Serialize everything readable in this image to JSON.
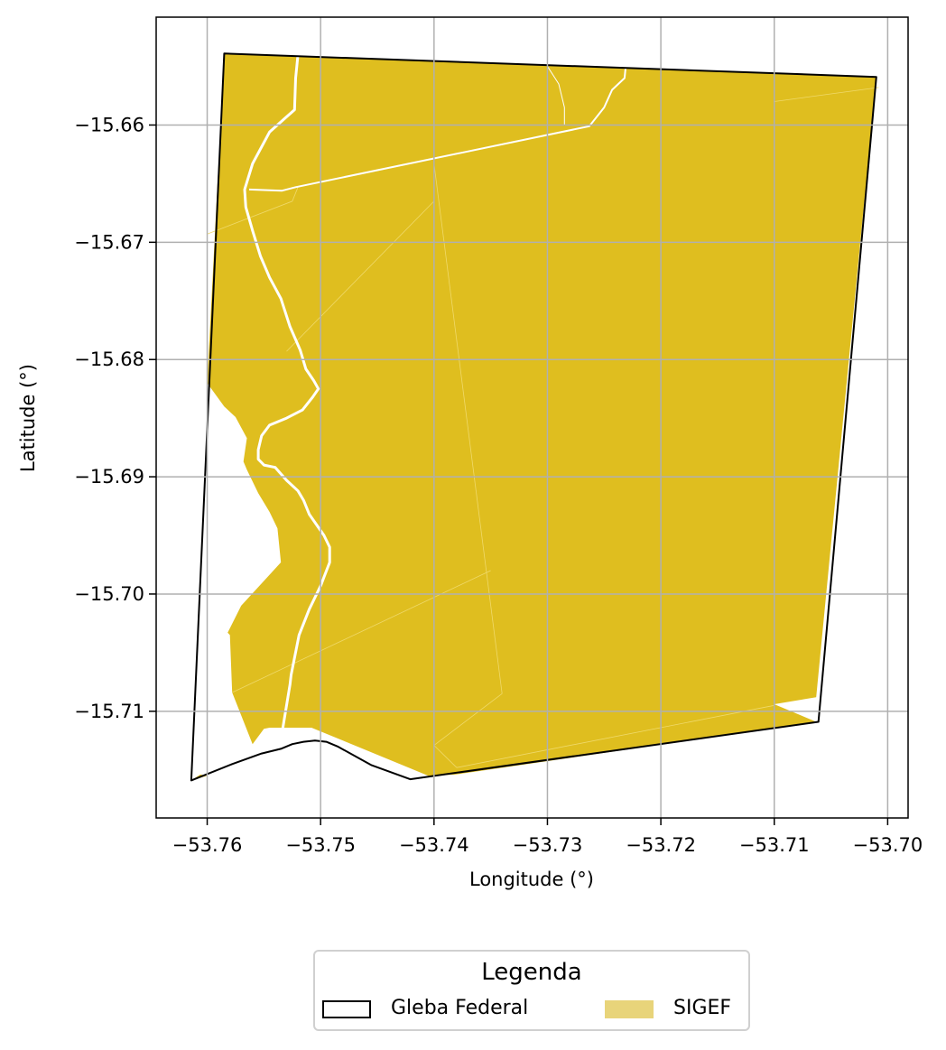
{
  "chart_data": {
    "type": "map",
    "xlabel": "Longitude (°)",
    "ylabel": "Latitude (°)",
    "xlim": [
      -53.7645,
      -53.6982
    ],
    "ylim": [
      -15.7191,
      -15.6508
    ],
    "x_ticks": [
      -53.76,
      -53.75,
      -53.74,
      -53.73,
      -53.72,
      -53.71,
      -53.7
    ],
    "x_tick_labels": [
      "−53.76",
      "−53.75",
      "−53.74",
      "−53.73",
      "−53.72",
      "−53.71",
      "−53.70"
    ],
    "y_ticks": [
      -15.66,
      -15.67,
      -15.68,
      -15.69,
      -15.7,
      -15.71
    ],
    "y_tick_labels": [
      "−15.66",
      "−15.67",
      "−15.68",
      "−15.69",
      "−15.70",
      "−15.71"
    ],
    "grid": true,
    "colors": {
      "sigef_fill": "#dfbe1f",
      "legend_sigef_fill": "#e8d47a",
      "gleba_edge": "#000000",
      "grid": "#b0b0b0",
      "road": "#ffffff"
    },
    "gleba_federal": [
      [
        -53.7585,
        -15.6539
      ],
      [
        -53.701,
        -15.6559
      ],
      [
        -53.7061,
        -15.7109
      ],
      [
        -53.7421,
        -15.7158
      ],
      [
        -53.7455,
        -15.7146
      ],
      [
        -53.7485,
        -15.713
      ],
      [
        -53.7495,
        -15.7126
      ],
      [
        -53.7505,
        -15.7125
      ],
      [
        -53.7515,
        -15.7126
      ],
      [
        -53.7525,
        -15.7128
      ],
      [
        -53.7535,
        -15.7132
      ],
      [
        -53.7552,
        -15.7136
      ],
      [
        -53.7578,
        -15.7145
      ],
      [
        -53.7614,
        -15.7159
      ]
    ],
    "sigef": [
      [
        -53.7585,
        -15.6539
      ],
      [
        -53.701,
        -15.6559
      ],
      [
        -53.7063,
        -15.7088
      ],
      [
        -53.71,
        -15.7094
      ],
      [
        -53.7063,
        -15.7109
      ],
      [
        -53.7381,
        -15.7154
      ],
      [
        -53.7405,
        -15.7155
      ],
      [
        -53.7508,
        -15.7114
      ],
      [
        -53.7525,
        -15.7114
      ],
      [
        -53.7545,
        -15.7114
      ],
      [
        -53.755,
        -15.7115
      ],
      [
        -53.756,
        -15.7128
      ],
      [
        -53.7578,
        -15.7084
      ],
      [
        -53.758,
        -15.7035
      ],
      [
        -53.7582,
        -15.7033
      ],
      [
        -53.757,
        -15.701
      ],
      [
        -53.7535,
        -15.6973
      ],
      [
        -53.7538,
        -15.6944
      ],
      [
        -53.7545,
        -15.693
      ],
      [
        -53.7555,
        -15.6914
      ],
      [
        -53.7565,
        -15.6894
      ],
      [
        -53.7568,
        -15.6887
      ],
      [
        -53.7565,
        -15.6867
      ],
      [
        -53.7575,
        -15.6849
      ],
      [
        -53.7585,
        -15.684
      ],
      [
        -53.76,
        -15.682
      ]
    ],
    "sigef_tail": [
      [
        -53.7614,
        -15.7159
      ],
      [
        -53.76,
        -15.7155
      ],
      [
        -53.7606,
        -15.7154
      ]
    ],
    "sigef_hole": [
      [
        -53.7086,
        -15.7096
      ],
      [
        -53.7061,
        -15.7089
      ],
      [
        -53.7061,
        -15.7109
      ]
    ],
    "parcel_lines": [
      [
        [
          -53.76,
          -15.6693
        ],
        [
          -53.7525,
          -15.6665
        ],
        [
          -53.752,
          -15.6653
        ]
      ],
      [
        [
          -53.753,
          -15.6793
        ],
        [
          -53.74,
          -15.6665
        ]
      ],
      [
        [
          -53.74,
          -15.6633
        ],
        [
          -53.734,
          -15.7085
        ]
      ],
      [
        [
          -53.734,
          -15.7085
        ],
        [
          -53.74,
          -15.7129
        ],
        [
          -53.738,
          -15.7148
        ]
      ],
      [
        [
          -53.738,
          -15.7148
        ],
        [
          -53.71,
          -15.7095
        ]
      ],
      [
        [
          -53.7578,
          -15.7084
        ],
        [
          -53.735,
          -15.698
        ]
      ],
      [
        [
          -53.71,
          -15.658
        ],
        [
          -53.7008,
          -15.6568
        ]
      ]
    ],
    "roads_main": [
      [
        [
          -53.752,
          -15.654
        ],
        [
          -53.7522,
          -15.656
        ],
        [
          -53.7523,
          -15.6587
        ],
        [
          -53.753,
          -15.6593
        ],
        [
          -53.7545,
          -15.6606
        ],
        [
          -53.756,
          -15.6633
        ],
        [
          -53.7567,
          -15.6655
        ],
        [
          -53.7566,
          -15.667
        ],
        [
          -53.756,
          -15.669
        ],
        [
          -53.7553,
          -15.6712
        ],
        [
          -53.7545,
          -15.673
        ],
        [
          -53.7535,
          -15.6748
        ],
        [
          -53.7527,
          -15.6772
        ],
        [
          -53.7518,
          -15.6792
        ],
        [
          -53.7513,
          -15.6808
        ],
        [
          -53.7506,
          -15.6818
        ],
        [
          -53.7502,
          -15.6825
        ],
        [
          -53.7507,
          -15.6832
        ],
        [
          -53.7516,
          -15.6843
        ],
        [
          -53.753,
          -15.685
        ],
        [
          -53.7545,
          -15.6856
        ],
        [
          -53.7552,
          -15.6865
        ],
        [
          -53.7555,
          -15.6877
        ],
        [
          -53.7555,
          -15.6885
        ],
        [
          -53.755,
          -15.689
        ],
        [
          -53.754,
          -15.6892
        ],
        [
          -53.753,
          -15.6903
        ],
        [
          -53.752,
          -15.6912
        ],
        [
          -53.7515,
          -15.692
        ],
        [
          -53.751,
          -15.6932
        ],
        [
          -53.7497,
          -15.695
        ],
        [
          -53.7492,
          -15.696
        ],
        [
          -53.7492,
          -15.6973
        ],
        [
          -53.75,
          -15.6993
        ],
        [
          -53.751,
          -15.7013
        ],
        [
          -53.7519,
          -15.7035
        ],
        [
          -53.7526,
          -15.7069
        ],
        [
          -53.7527,
          -15.7077
        ],
        [
          -53.7534,
          -15.7118
        ]
      ]
    ],
    "roads_minor": [
      [
        [
          -53.7563,
          -15.6655
        ],
        [
          -53.7534,
          -15.6656
        ],
        [
          -53.7522,
          -15.6653
        ],
        [
          -53.7263,
          -15.6601
        ],
        [
          -53.725,
          -15.6585
        ],
        [
          -53.7243,
          -15.657
        ],
        [
          -53.7232,
          -15.656
        ],
        [
          -53.7231,
          -15.655
        ]
      ],
      [
        [
          -53.73,
          -15.655
        ],
        [
          -53.729,
          -15.6565
        ],
        [
          -53.7285,
          -15.6585
        ],
        [
          -53.7285,
          -15.66
        ]
      ]
    ],
    "legend": {
      "title": "Legenda",
      "items": [
        {
          "label": "Gleba Federal",
          "kind": "outline"
        },
        {
          "label": "SIGEF",
          "kind": "fill"
        }
      ]
    }
  }
}
